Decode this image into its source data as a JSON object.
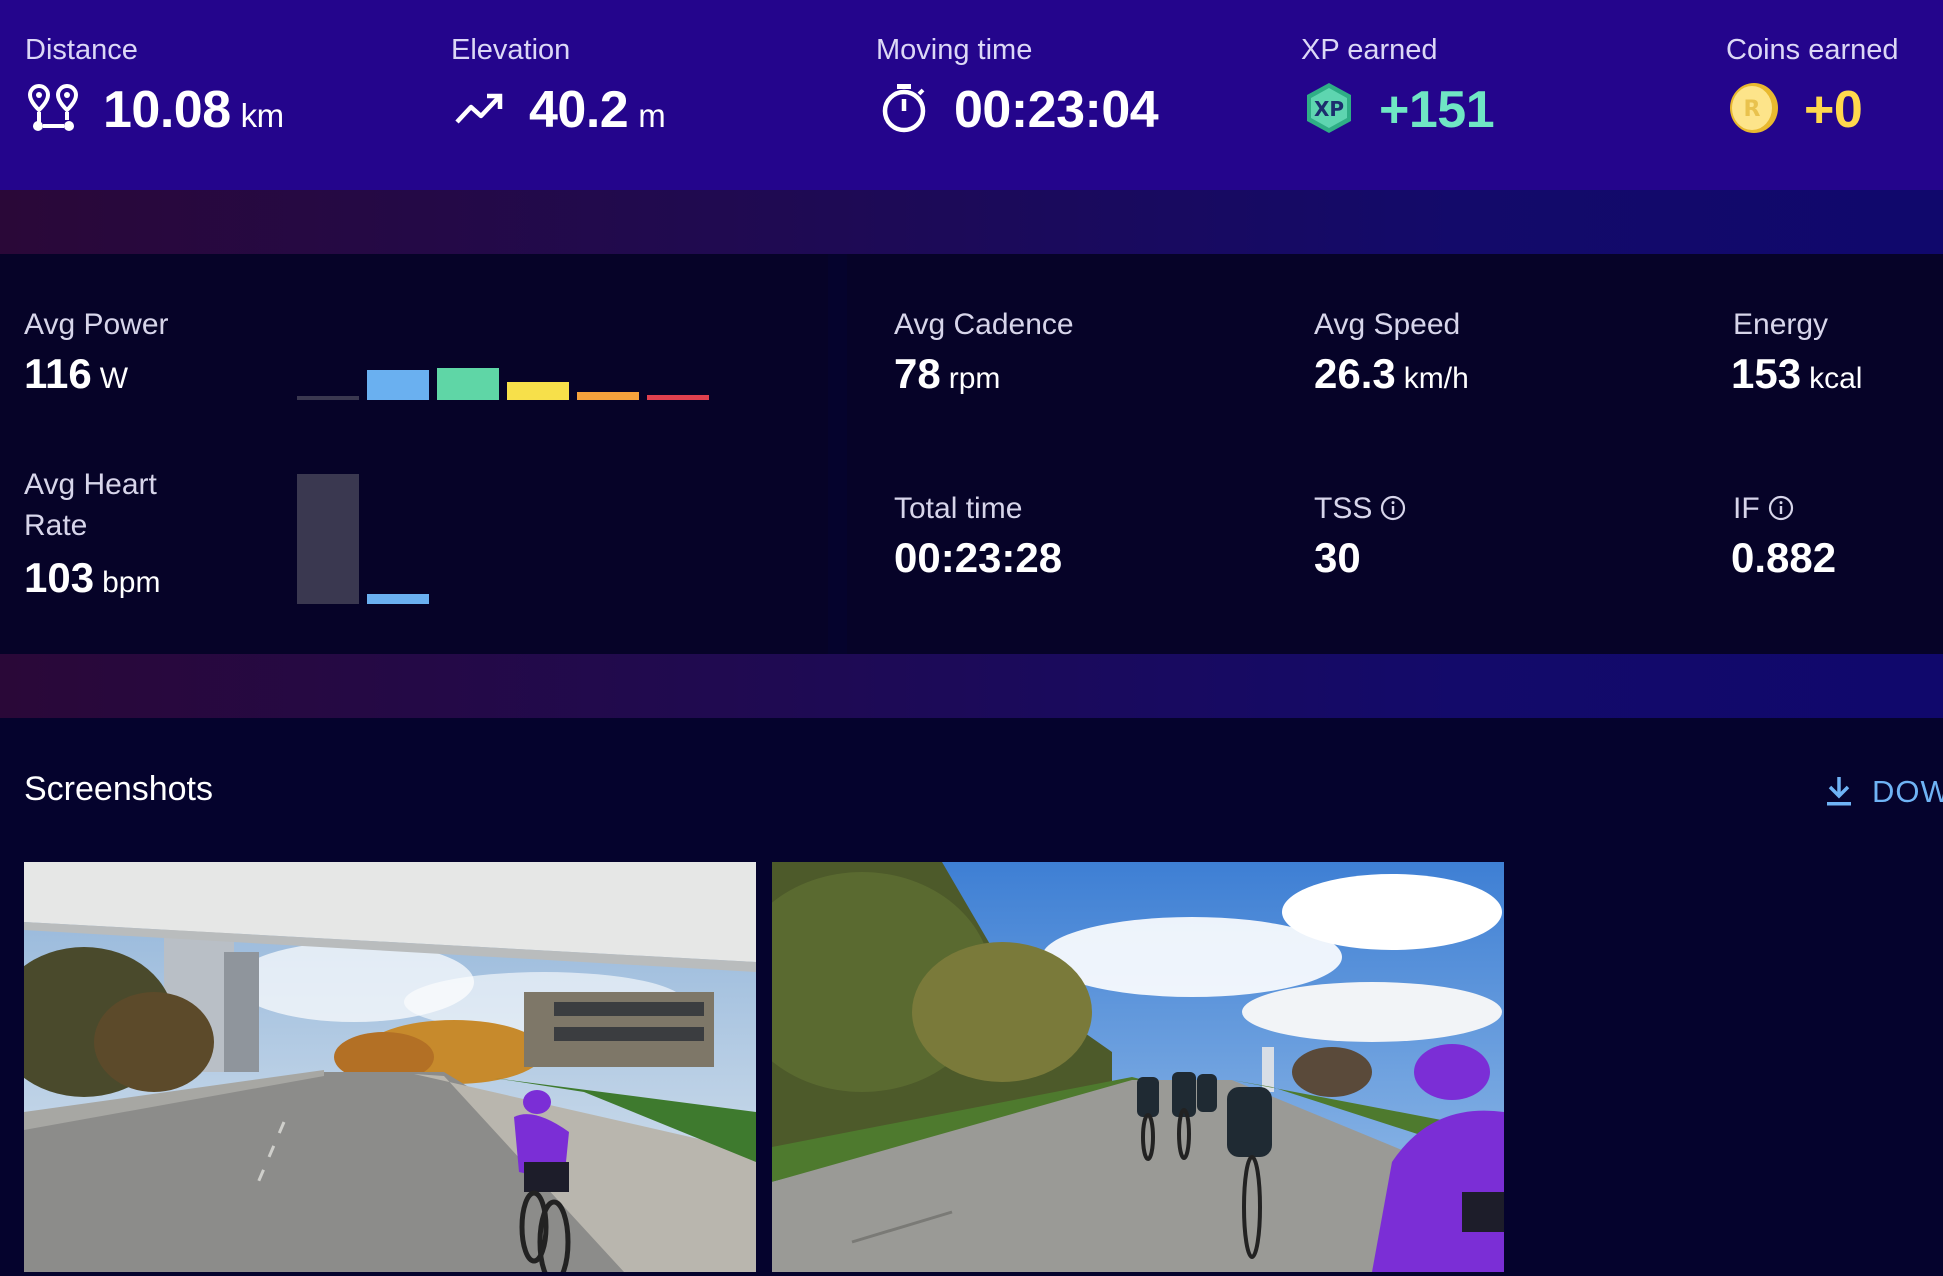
{
  "summary": {
    "distance": {
      "label": "Distance",
      "value": "10.08",
      "unit": "km",
      "icon": "route-icon"
    },
    "elevation": {
      "label": "Elevation",
      "value": "40.2",
      "unit": "m",
      "icon": "trending-up-icon"
    },
    "moving_time": {
      "label": "Moving time",
      "value": "00:23:04",
      "icon": "stopwatch-icon"
    },
    "xp": {
      "label": "XP earned",
      "value": "+151",
      "badge": "XP",
      "icon": "xp-badge-icon",
      "color": "#6fe6c4"
    },
    "coins": {
      "label": "Coins earned",
      "value": "+0",
      "badge": "R",
      "icon": "coin-icon",
      "color": "#ffd84d"
    }
  },
  "metrics": {
    "avg_power": {
      "label": "Avg Power",
      "value": "116",
      "unit": "W"
    },
    "avg_heart_rate": {
      "label_line1": "Avg Heart",
      "label_line2": "Rate",
      "value": "103",
      "unit": "bpm"
    },
    "avg_cadence": {
      "label": "Avg Cadence",
      "value": "78",
      "unit": "rpm"
    },
    "avg_speed": {
      "label": "Avg Speed",
      "value": "26.3",
      "unit": "km/h"
    },
    "energy": {
      "label": "Energy",
      "value": "153",
      "unit": "kcal"
    },
    "total_time": {
      "label": "Total time",
      "value": "00:23:28"
    },
    "tss": {
      "label": "TSS",
      "value": "30",
      "icon": "info-icon"
    },
    "if": {
      "label": "IF",
      "value": "0.882",
      "icon": "info-icon"
    }
  },
  "zone_colors": [
    "#3a3850",
    "#6ab0f0",
    "#5fd6a6",
    "#f7e04a",
    "#f5a23c",
    "#e0404e"
  ],
  "power_zones": [
    0.1,
    0.95,
    1.0,
    0.55,
    0.25,
    0.15
  ],
  "hr_zones": [
    1.0,
    0.08,
    0,
    0,
    0,
    0
  ],
  "screenshots": {
    "title": "Screenshots",
    "download_label": "DOW",
    "download_icon": "download-icon"
  }
}
